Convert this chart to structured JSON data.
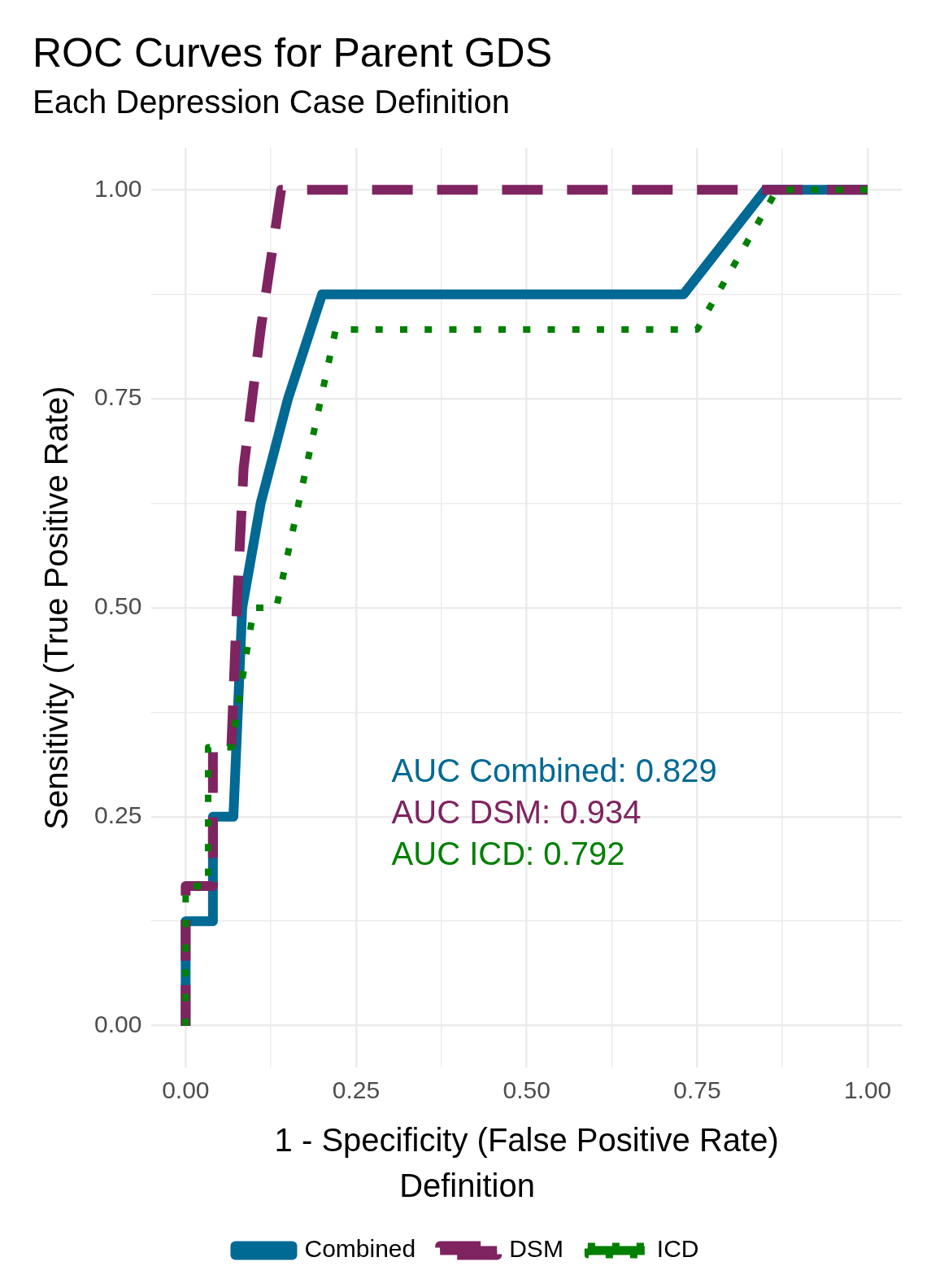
{
  "chart_data": {
    "type": "line",
    "title": "ROC Curves for Parent GDS",
    "subtitle": "Each Depression Case Definition",
    "xlabel": "1 - Specificity (False Positive Rate)",
    "ylabel": "Sensitivity (True Positive Rate)",
    "legend_title": "Definition",
    "series": [
      {
        "name": "Combined",
        "color": "#006994",
        "line_style": "solid",
        "x": [
          0,
          0,
          0.04,
          0.04,
          0.07,
          0.083,
          0.11,
          0.15,
          0.2,
          0.73,
          0.85,
          1
        ],
        "values": [
          0,
          0.125,
          0.125,
          0.25,
          0.25,
          0.5,
          0.625,
          0.75,
          0.875,
          0.875,
          1,
          1
        ]
      },
      {
        "name": "DSM",
        "color": "#7f2460",
        "line_style": "dashed",
        "x": [
          0,
          0,
          0.04,
          0.04,
          0.067,
          0.075,
          0.085,
          0.11,
          0.14,
          1
        ],
        "values": [
          0,
          0.167,
          0.167,
          0.333,
          0.333,
          0.5,
          0.667,
          0.833,
          1,
          1
        ]
      },
      {
        "name": "ICD",
        "color": "#008000",
        "line_style": "dotted",
        "x": [
          0,
          0,
          0.033,
          0.033,
          0.067,
          0.1,
          0.133,
          0.22,
          0.75,
          0.867,
          1
        ],
        "values": [
          0,
          0.167,
          0.167,
          0.333,
          0.333,
          0.5,
          0.5,
          0.833,
          0.833,
          1,
          1
        ]
      }
    ],
    "annotations": [
      "AUC Combined: 0.829",
      "AUC DSM: 0.934",
      "AUC ICD: 0.792"
    ],
    "xlim": [
      -0.05,
      1.05
    ],
    "ylim": [
      -0.05,
      1.05
    ],
    "xticks": [
      {
        "value": 0,
        "label": "0.00"
      },
      {
        "value": 0.125,
        "label": null
      },
      {
        "value": 0.25,
        "label": "0.25"
      },
      {
        "value": 0.375,
        "label": null
      },
      {
        "value": 0.5,
        "label": "0.50"
      },
      {
        "value": 0.625,
        "label": null
      },
      {
        "value": 0.75,
        "label": "0.75"
      },
      {
        "value": 0.875,
        "label": null
      },
      {
        "value": 1,
        "label": "1.00"
      }
    ],
    "yticks": [
      {
        "value": 0,
        "label": "0.00"
      },
      {
        "value": 0.125,
        "label": null
      },
      {
        "value": 0.25,
        "label": "0.25"
      },
      {
        "value": 0.375,
        "label": null
      },
      {
        "value": 0.5,
        "label": "0.50"
      },
      {
        "value": 0.625,
        "label": null
      },
      {
        "value": 0.75,
        "label": "0.75"
      },
      {
        "value": 0.875,
        "label": null
      },
      {
        "value": 1,
        "label": "1.00"
      }
    ],
    "grid": true,
    "legend": "bottom",
    "marker": "none"
  }
}
